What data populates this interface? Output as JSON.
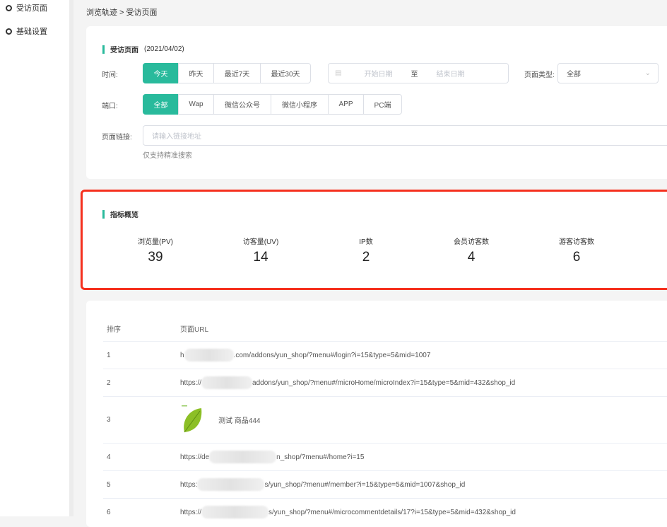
{
  "sidebar": {
    "items": [
      {
        "label": "受访页面"
      },
      {
        "label": "基础设置"
      }
    ]
  },
  "breadcrumb": "浏览轨迹 > 受访页面",
  "filters": {
    "title": "受访页面",
    "date": "(2021/04/02)",
    "time_label": "时间:",
    "time_options": [
      "今天",
      "昨天",
      "最近7天",
      "最近30天"
    ],
    "time_selected": "今天",
    "date_start_placeholder": "开始日期",
    "date_sep": "至",
    "date_end_placeholder": "结束日期",
    "page_type_label": "页面类型:",
    "page_type_value": "全部",
    "port_label": "端口:",
    "port_options": [
      "全部",
      "Wap",
      "微信公众号",
      "微信小程序",
      "APP",
      "PC端"
    ],
    "port_selected": "全部",
    "link_label": "页面链接:",
    "link_placeholder": "请输入链接地址",
    "link_value": "",
    "link_hint": "仅支持精准搜索"
  },
  "metrics": {
    "title": "指标概览",
    "items": [
      {
        "label": "浏览量(PV)",
        "value": "39"
      },
      {
        "label": "访客量(UV)",
        "value": "14"
      },
      {
        "label": "IP数",
        "value": "2"
      },
      {
        "label": "会员访客数",
        "value": "4"
      },
      {
        "label": "游客访客数",
        "value": "6"
      }
    ]
  },
  "table": {
    "headers": [
      "排序",
      "页面URL"
    ],
    "rows": [
      {
        "rank": "1",
        "url_prefix": "h",
        "url_suffix": ".com/addons/yun_shop/?menu#/login?i=15&type=5&mid=1007"
      },
      {
        "rank": "2",
        "url_prefix": "https://",
        "url_suffix": "addons/yun_shop/?menu#/microHome/microIndex?i=15&type=5&mid=432&shop_id"
      },
      {
        "rank": "3",
        "product": "测试 商品444"
      },
      {
        "rank": "4",
        "url_prefix": "https://de",
        "url_suffix": "n_shop/?menu#/home?i=15"
      },
      {
        "rank": "5",
        "url_prefix": "https:",
        "url_suffix": "s/yun_shop/?menu#/member?i=15&type=5&mid=1007&shop_id"
      },
      {
        "rank": "6",
        "url_prefix": "https://",
        "url_suffix": "s/yun_shop/?menu#/microcommentdetails/17?i=15&type=5&mid=432&shop_id"
      }
    ]
  },
  "colors": {
    "accent": "#29ba9c",
    "highlight": "#f5301e"
  }
}
